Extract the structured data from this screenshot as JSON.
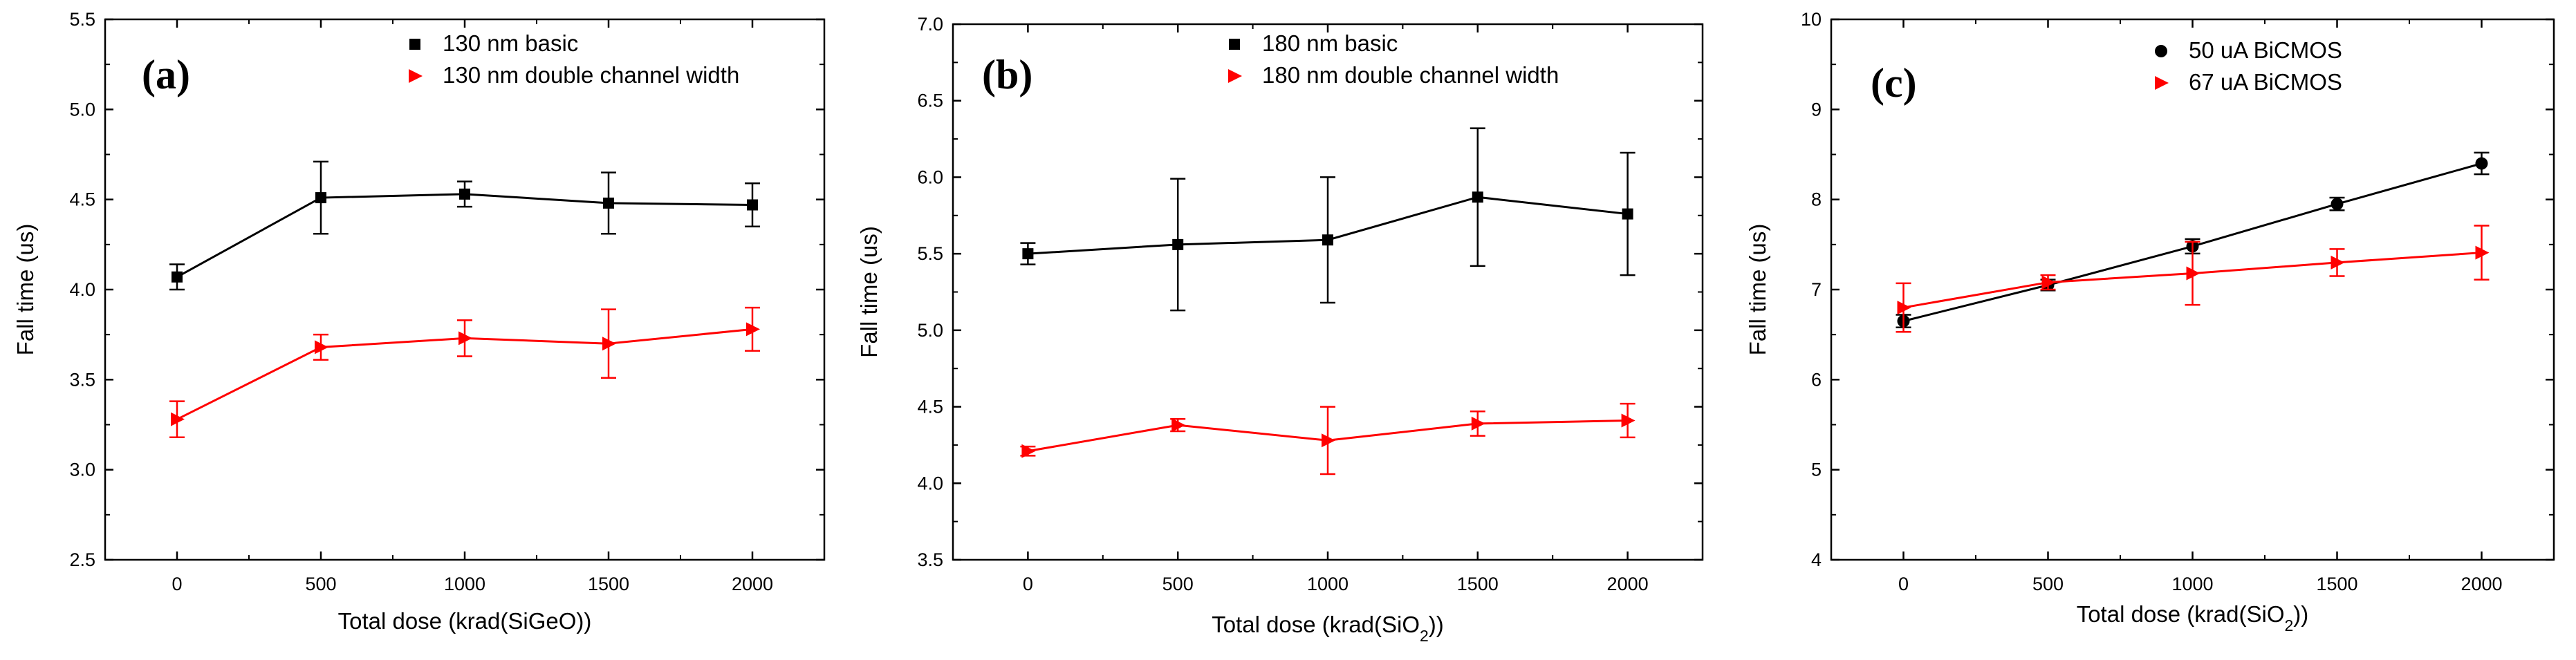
{
  "chart_data": [
    {
      "type": "line",
      "panel_label": "(a)",
      "title": "",
      "xlabel": "Total dose (krad(SiGeO))",
      "xlabel_sub": "",
      "xlabel_post": "",
      "ylabel": "Fall time (us)",
      "x": [
        0,
        500,
        1000,
        1500,
        2000
      ],
      "xticks": [
        0,
        500,
        1000,
        1500,
        2000
      ],
      "xlim": [
        -250,
        2250
      ],
      "ylim": [
        2.5,
        5.5
      ],
      "yticks": [
        "2.5",
        "3.0",
        "3.5",
        "4.0",
        "4.5",
        "5.0",
        "5.5"
      ],
      "legend_position": "top-right",
      "series": [
        {
          "name": "130 nm basic",
          "color": "#000000",
          "marker": "square",
          "values": [
            4.07,
            4.51,
            4.53,
            4.48,
            4.47
          ],
          "errors": [
            0.07,
            0.2,
            0.07,
            0.17,
            0.12
          ]
        },
        {
          "name": "130 nm double channel width",
          "color": "#ff0000",
          "marker": "triangle-right",
          "values": [
            3.28,
            3.68,
            3.73,
            3.7,
            3.78
          ],
          "errors": [
            0.1,
            0.07,
            0.1,
            0.19,
            0.12
          ]
        }
      ]
    },
    {
      "type": "line",
      "panel_label": "(b)",
      "title": "",
      "xlabel": "Total dose (krad(SiO",
      "xlabel_sub": "2",
      "xlabel_post": "))",
      "ylabel": "Fall time (us)",
      "x": [
        0,
        500,
        1000,
        1500,
        2000
      ],
      "xticks": [
        0,
        500,
        1000,
        1500,
        2000
      ],
      "xlim": [
        -250,
        2250
      ],
      "ylim": [
        3.5,
        7.0
      ],
      "yticks": [
        "3.5",
        "4.0",
        "4.5",
        "5.0",
        "5.5",
        "6.0",
        "6.5",
        "7.0"
      ],
      "legend_position": "top-right",
      "series": [
        {
          "name": "180 nm basic",
          "color": "#000000",
          "marker": "square",
          "values": [
            5.5,
            5.56,
            5.59,
            5.87,
            5.76
          ],
          "errors": [
            0.07,
            0.43,
            0.41,
            0.45,
            0.4
          ]
        },
        {
          "name": "180 nm double channel width",
          "color": "#ff0000",
          "marker": "triangle-right",
          "values": [
            4.21,
            4.38,
            4.28,
            4.39,
            4.41
          ],
          "errors": [
            0.03,
            0.04,
            0.22,
            0.08,
            0.11
          ]
        }
      ]
    },
    {
      "type": "line",
      "panel_label": "(c)",
      "title": "",
      "xlabel": "Total dose (krad(SiO",
      "xlabel_sub": "2",
      "xlabel_post": "))",
      "ylabel": "Fall time (us)",
      "x": [
        0,
        500,
        1000,
        1500,
        2000
      ],
      "xticks": [
        0,
        500,
        1000,
        1500,
        2000
      ],
      "xlim": [
        -250,
        2250
      ],
      "ylim": [
        4,
        10
      ],
      "yticks": [
        "4",
        "5",
        "6",
        "7",
        "8",
        "9",
        "10"
      ],
      "legend_position": "top-right",
      "series": [
        {
          "name": "50 uA BiCMOS",
          "color": "#000000",
          "marker": "circle",
          "values": [
            6.65,
            7.05,
            7.48,
            7.95,
            8.4
          ],
          "errors": [
            0.07,
            0.06,
            0.08,
            0.07,
            0.12
          ]
        },
        {
          "name": "67 uA BiCMOS",
          "color": "#ff0000",
          "marker": "triangle-right",
          "values": [
            6.8,
            7.08,
            7.18,
            7.3,
            7.41
          ],
          "errors": [
            0.27,
            0.08,
            0.35,
            0.15,
            0.3
          ]
        }
      ]
    }
  ]
}
